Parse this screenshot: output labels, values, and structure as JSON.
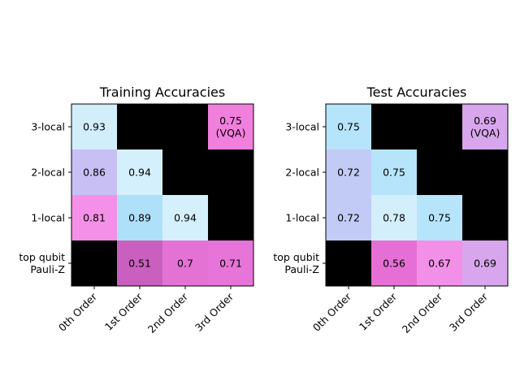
{
  "chart_data": [
    {
      "type": "heatmap",
      "title": "Training Accuracies",
      "x_categories": [
        "0th Order",
        "1st Order",
        "2nd Order",
        "3rd Order"
      ],
      "y_categories": [
        "3-local",
        "2-local",
        "1-local",
        "top qubit\nPauli-Z"
      ],
      "masked_color": "#000000",
      "cells": [
        [
          {
            "value": 0.93,
            "label": "0.93",
            "color": "#d2eefb"
          },
          null,
          null,
          {
            "value": 0.75,
            "label": "0.75\n(VQA)",
            "color": "#f17fdc"
          }
        ],
        [
          {
            "value": 0.86,
            "label": "0.86",
            "color": "#c8c0f4"
          },
          {
            "value": 0.94,
            "label": "0.94",
            "color": "#d4f0fc"
          },
          null,
          null
        ],
        [
          {
            "value": 0.81,
            "label": "0.81",
            "color": "#f590e8"
          },
          {
            "value": 0.89,
            "label": "0.89",
            "color": "#aee0f9"
          },
          {
            "value": 0.94,
            "label": "0.94",
            "color": "#d4f0fc"
          },
          null
        ],
        [
          null,
          {
            "value": 0.51,
            "label": "0.51",
            "color": "#c95fbf"
          },
          {
            "value": 0.7,
            "label": "0.7",
            "color": "#e472d5"
          },
          {
            "value": 0.71,
            "label": "0.71",
            "color": "#e774d8"
          }
        ]
      ]
    },
    {
      "type": "heatmap",
      "title": "Test Accuracies",
      "x_categories": [
        "0th Order",
        "1st Order",
        "2nd Order",
        "3rd Order"
      ],
      "y_categories": [
        "3-local",
        "2-local",
        "1-local",
        "top qubit\nPauli-Z"
      ],
      "masked_color": "#000000",
      "cells": [
        [
          {
            "value": 0.75,
            "label": "0.75",
            "color": "#b6e4fb"
          },
          null,
          null,
          {
            "value": 0.69,
            "label": "0.69\n(VQA)",
            "color": "#d7a6ec"
          }
        ],
        [
          {
            "value": 0.72,
            "label": "0.72",
            "color": "#c2cbf6"
          },
          {
            "value": 0.75,
            "label": "0.75",
            "color": "#b6e4fb"
          },
          null,
          null
        ],
        [
          {
            "value": 0.72,
            "label": "0.72",
            "color": "#c2cbf6"
          },
          {
            "value": 0.78,
            "label": "0.78",
            "color": "#d4effc"
          },
          {
            "value": 0.75,
            "label": "0.75",
            "color": "#b6e4fb"
          },
          null
        ],
        [
          null,
          {
            "value": 0.56,
            "label": "0.56",
            "color": "#e56fd4"
          },
          {
            "value": 0.67,
            "label": "0.67",
            "color": "#f290e8"
          },
          {
            "value": 0.69,
            "label": "0.69",
            "color": "#d7a6ec"
          }
        ]
      ]
    }
  ]
}
